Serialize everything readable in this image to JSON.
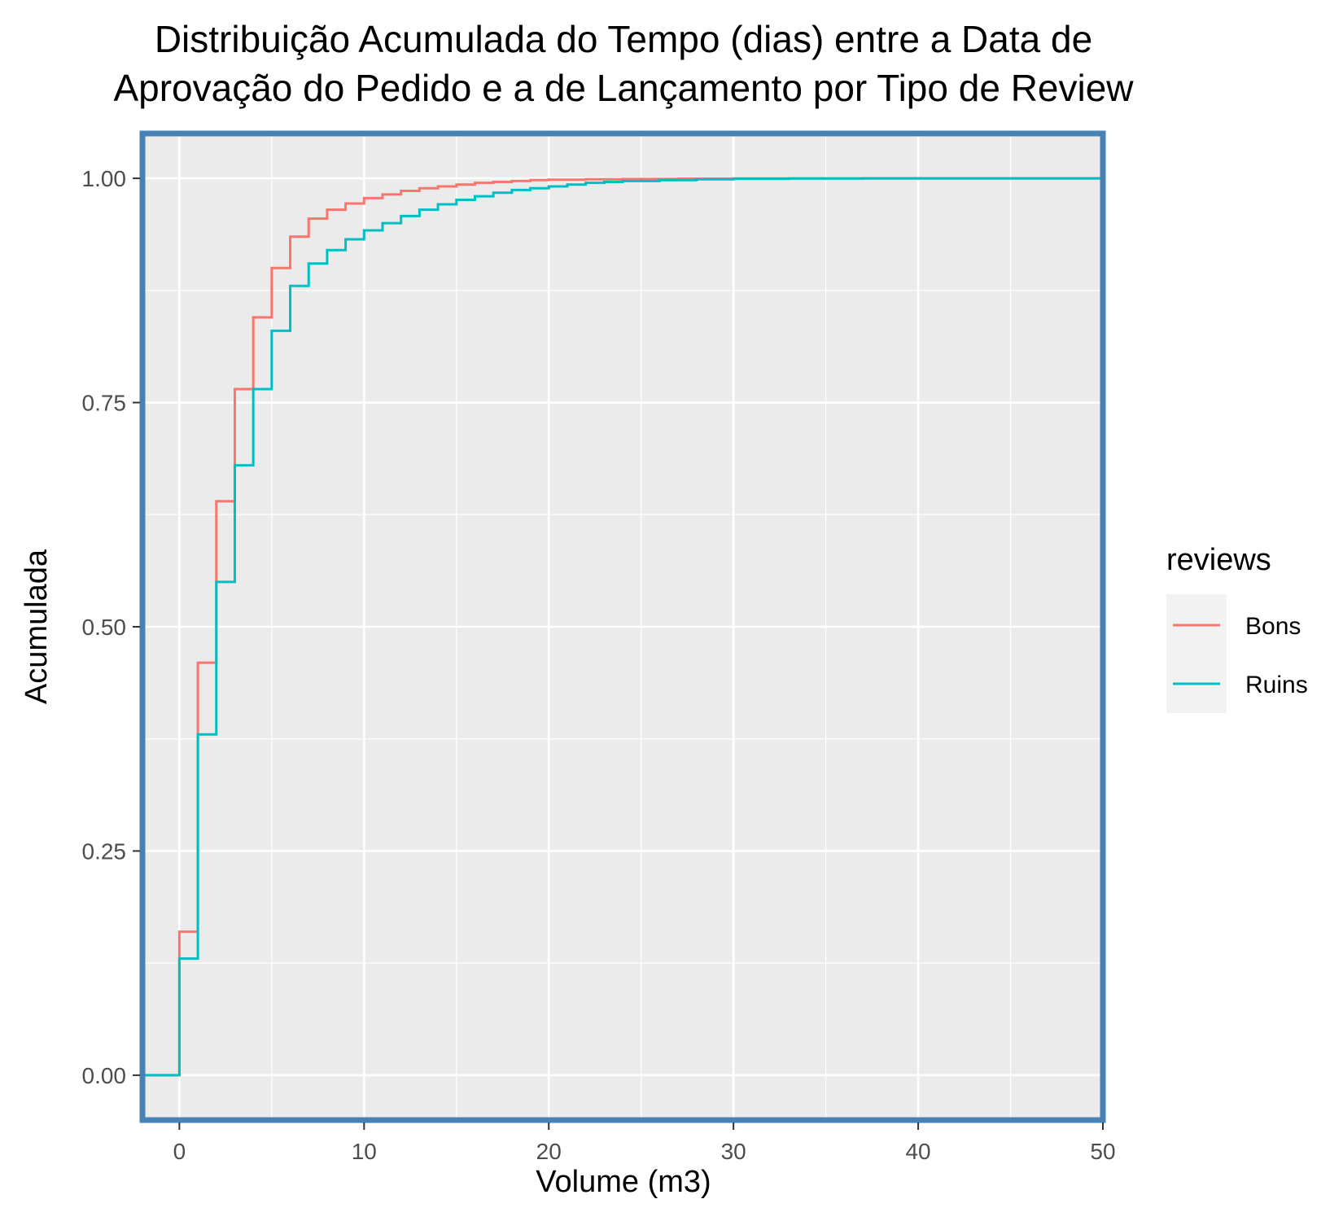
{
  "chart_data": {
    "type": "line",
    "subtype": "step-ecdf",
    "title_lines": [
      "Distribuição Acumulada do Tempo (dias) entre a Data de",
      "Aprovação do Pedido e a de Lançamento por Tipo de Review"
    ],
    "xlabel": "Volume (m3)",
    "ylabel": "Acumulada",
    "xlim": [
      -2,
      50
    ],
    "ylim": [
      -0.05,
      1.05
    ],
    "x_ticks": [
      0,
      10,
      20,
      30,
      40,
      50
    ],
    "x_tick_labels": [
      "0",
      "10",
      "20",
      "30",
      "40",
      "50"
    ],
    "y_ticks": [
      0,
      0.25,
      0.5,
      0.75,
      1.0
    ],
    "y_tick_labels": [
      "0.00",
      "0.25",
      "0.50",
      "0.75",
      "1.00"
    ],
    "grid": true,
    "panel_background": "#ebebeb",
    "panel_border_color": "#4682b4",
    "legend": {
      "title": "reviews",
      "placement": "right"
    },
    "series": [
      {
        "name": "Bons",
        "color": "#f8766d",
        "x": [
          -2,
          0,
          1,
          2,
          3,
          4,
          5,
          6,
          7,
          8,
          9,
          10,
          11,
          12,
          13,
          14,
          15,
          16,
          17,
          18,
          19,
          20,
          22,
          24,
          27,
          30,
          37,
          50
        ],
        "y": [
          0,
          0.16,
          0.46,
          0.64,
          0.765,
          0.845,
          0.9,
          0.935,
          0.955,
          0.965,
          0.972,
          0.978,
          0.982,
          0.986,
          0.989,
          0.991,
          0.993,
          0.995,
          0.996,
          0.997,
          0.998,
          0.9985,
          0.999,
          0.9993,
          0.9996,
          0.9998,
          1.0,
          1.0
        ]
      },
      {
        "name": "Ruins",
        "color": "#00bfc4",
        "x": [
          -2,
          0,
          1,
          2,
          3,
          4,
          5,
          6,
          7,
          8,
          9,
          10,
          11,
          12,
          13,
          14,
          15,
          16,
          17,
          18,
          19,
          20,
          21,
          22,
          23,
          24,
          26,
          28,
          30,
          33,
          37,
          50
        ],
        "y": [
          0,
          0.13,
          0.38,
          0.55,
          0.68,
          0.765,
          0.83,
          0.88,
          0.905,
          0.92,
          0.932,
          0.942,
          0.95,
          0.958,
          0.965,
          0.971,
          0.976,
          0.98,
          0.984,
          0.987,
          0.989,
          0.991,
          0.993,
          0.995,
          0.996,
          0.997,
          0.998,
          0.999,
          0.9995,
          0.9998,
          1.0,
          1.0
        ]
      }
    ]
  }
}
